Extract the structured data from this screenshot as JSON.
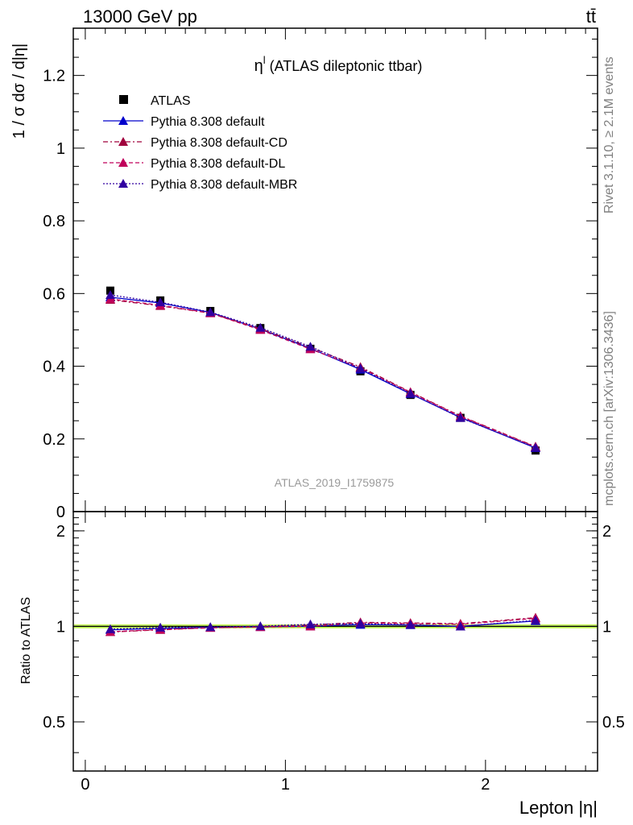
{
  "header": {
    "left": "13000 GeV pp",
    "right": "tt̄"
  },
  "side_labels": {
    "rivet": "Rivet 3.1.10, ≥ 2.1M events",
    "mcplots": "mcplots.cern.ch [arXiv:1306.3436]"
  },
  "watermark": "ATLAS_2019_I1759875",
  "colors": {
    "data": "#000000",
    "default": "#0000cc",
    "default_cd": "#a0003c",
    "default_dl": "#c0005a",
    "default_mbr": "#3000a0",
    "band": "#ccff66",
    "band_inner": "#ffff99"
  },
  "chart_data": [
    {
      "type": "scatter",
      "title": "η^l (ATLAS dileptonic ttbar)",
      "title_main": "η",
      "title_sup": "l",
      "title_rest": " (ATLAS dileptonic ttbar)",
      "ylabel": "1 / σ  dσ / d|η|",
      "xlim": [
        -0.06,
        2.56
      ],
      "ylim": [
        0,
        1.33
      ],
      "yticks": [
        0,
        0.2,
        0.4,
        0.6,
        0.8,
        1,
        1.2
      ],
      "ytick_labels": [
        "0",
        "0.2",
        "0.4",
        "0.6",
        "0.8",
        "1",
        "1.2"
      ],
      "legend_position": "top-left",
      "x": [
        0.125,
        0.375,
        0.625,
        0.875,
        1.125,
        1.375,
        1.625,
        1.875,
        2.25
      ],
      "series": [
        {
          "name": "ATLAS",
          "marker": "square",
          "style": "none",
          "values": [
            0.608,
            0.581,
            0.552,
            0.505,
            0.448,
            0.386,
            0.321,
            0.258,
            0.168
          ]
        },
        {
          "name": "Pythia 8.308 default",
          "marker": "triangle",
          "style": "solid",
          "values": [
            0.59,
            0.574,
            0.548,
            0.502,
            0.449,
            0.391,
            0.324,
            0.259,
            0.175
          ]
        },
        {
          "name": "Pythia 8.308 default-CD",
          "marker": "triangle",
          "style": "dashdot",
          "values": [
            0.583,
            0.566,
            0.546,
            0.503,
            0.452,
            0.398,
            0.329,
            0.263,
            0.179
          ]
        },
        {
          "name": "Pythia 8.308 default-DL",
          "marker": "triangle",
          "style": "dashed",
          "values": [
            0.585,
            0.568,
            0.546,
            0.5,
            0.447,
            0.395,
            0.328,
            0.262,
            0.178
          ]
        },
        {
          "name": "Pythia 8.308 default-MBR",
          "marker": "triangle",
          "style": "dotted",
          "values": [
            0.596,
            0.576,
            0.549,
            0.506,
            0.454,
            0.394,
            0.325,
            0.258,
            0.176
          ]
        }
      ]
    },
    {
      "type": "line",
      "ylabel": "Ratio to ATLAS",
      "xlabel": "Lepton |η|",
      "xlim": [
        -0.06,
        2.56
      ],
      "ylim": [
        0.35,
        2.3
      ],
      "yticks": [
        0.5,
        1,
        2
      ],
      "ytick_labels": [
        "0.5",
        "1",
        "2"
      ],
      "xticks": [
        0,
        1,
        2
      ],
      "xtick_labels": [
        "0",
        "1",
        "2"
      ],
      "band": [
        0.985,
        1.015
      ],
      "x": [
        0.125,
        0.375,
        0.625,
        0.875,
        1.125,
        1.375,
        1.625,
        1.875,
        2.25
      ],
      "series": [
        {
          "name": "Pythia 8.308 default",
          "style": "solid",
          "values": [
            0.975,
            0.985,
            0.993,
            0.996,
            1.002,
            1.012,
            1.01,
            1.0,
            1.04
          ]
        },
        {
          "name": "Pythia 8.308 default-CD",
          "style": "dashdot",
          "values": [
            0.96,
            0.975,
            0.99,
            0.998,
            1.01,
            1.03,
            1.025,
            1.02,
            1.065
          ]
        },
        {
          "name": "Pythia 8.308 default-DL",
          "style": "dashed",
          "values": [
            0.962,
            0.977,
            0.99,
            0.995,
            1.0,
            1.025,
            1.02,
            1.015,
            1.06
          ]
        },
        {
          "name": "Pythia 8.308 default-MBR",
          "style": "dotted",
          "values": [
            0.98,
            0.992,
            0.995,
            1.002,
            1.015,
            1.02,
            1.012,
            1.0,
            1.045
          ]
        }
      ]
    }
  ]
}
